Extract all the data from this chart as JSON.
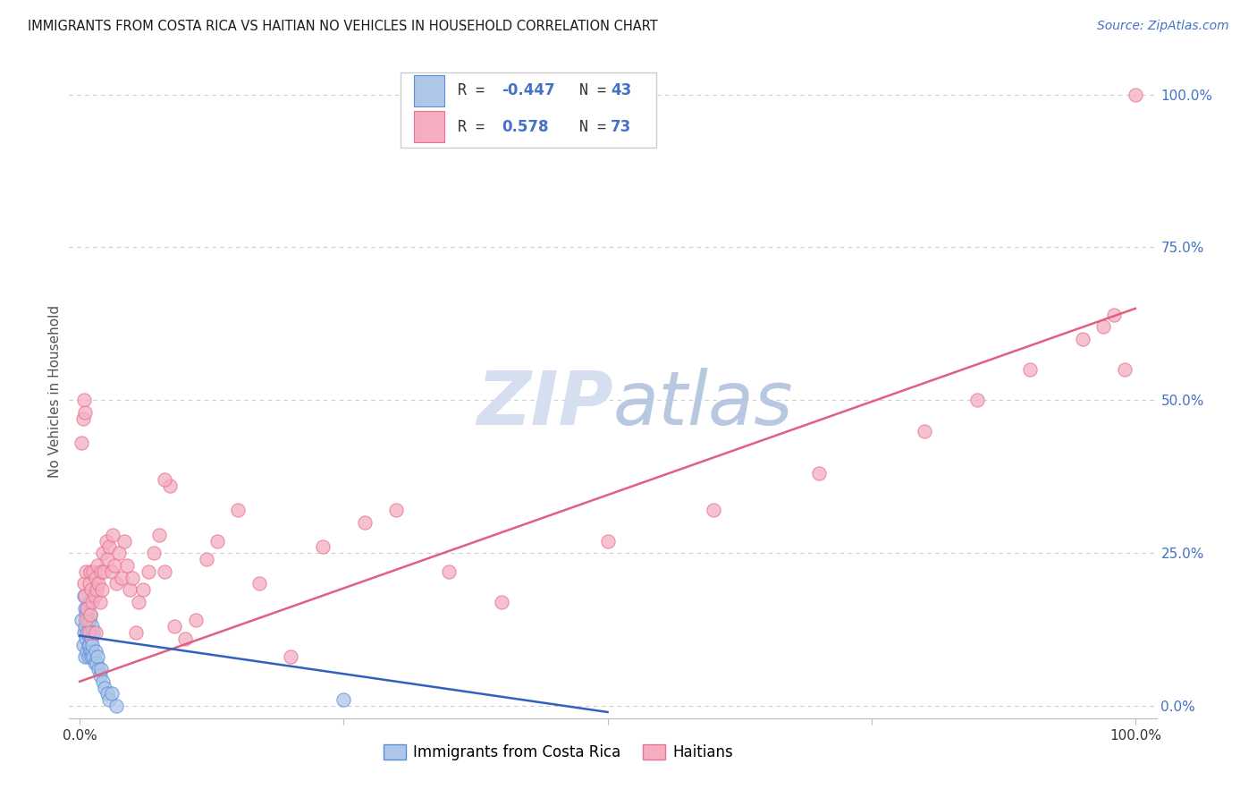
{
  "title": "IMMIGRANTS FROM COSTA RICA VS HAITIAN NO VEHICLES IN HOUSEHOLD CORRELATION CHART",
  "source": "Source: ZipAtlas.com",
  "ylabel": "No Vehicles in Household",
  "ytick_labels": [
    "0.0%",
    "25.0%",
    "50.0%",
    "75.0%",
    "100.0%"
  ],
  "ytick_values": [
    0.0,
    0.25,
    0.5,
    0.75,
    1.0
  ],
  "xtick_labels": [
    "0.0%",
    "100.0%"
  ],
  "xtick_positions": [
    0.0,
    1.0
  ],
  "xlim": [
    -0.01,
    1.02
  ],
  "ylim": [
    -0.02,
    1.05
  ],
  "legend_r_costa_rica": "-0.447",
  "legend_n_costa_rica": "43",
  "legend_r_haitian": "0.578",
  "legend_n_haitian": "73",
  "color_costa_rica_fill": "#aec6e8",
  "color_costa_rica_edge": "#5b8dd9",
  "color_haitian_fill": "#f5aec0",
  "color_haitian_edge": "#e87090",
  "color_line_costa_rica": "#3060c0",
  "color_line_haitian": "#e06080",
  "color_title": "#1a1a1a",
  "color_source": "#4472c4",
  "color_ytick": "#4472c4",
  "color_legend_text": "#4472c4",
  "background_color": "#ffffff",
  "grid_color": "#cccccc",
  "watermark_color": "#d5dff0",
  "costa_rica_x": [
    0.002,
    0.003,
    0.004,
    0.004,
    0.005,
    0.005,
    0.005,
    0.006,
    0.006,
    0.007,
    0.007,
    0.007,
    0.008,
    0.008,
    0.008,
    0.009,
    0.009,
    0.009,
    0.009,
    0.01,
    0.01,
    0.01,
    0.011,
    0.011,
    0.012,
    0.012,
    0.012,
    0.013,
    0.013,
    0.014,
    0.015,
    0.016,
    0.017,
    0.018,
    0.019,
    0.02,
    0.022,
    0.024,
    0.026,
    0.028,
    0.03,
    0.035,
    0.25
  ],
  "costa_rica_y": [
    0.14,
    0.1,
    0.18,
    0.12,
    0.16,
    0.08,
    0.13,
    0.11,
    0.15,
    0.09,
    0.12,
    0.16,
    0.1,
    0.14,
    0.08,
    0.12,
    0.1,
    0.14,
    0.17,
    0.09,
    0.12,
    0.15,
    0.08,
    0.11,
    0.09,
    0.13,
    0.1,
    0.08,
    0.12,
    0.07,
    0.09,
    0.07,
    0.08,
    0.06,
    0.05,
    0.06,
    0.04,
    0.03,
    0.02,
    0.01,
    0.02,
    0.0,
    0.01
  ],
  "haitian_x": [
    0.002,
    0.003,
    0.004,
    0.005,
    0.006,
    0.006,
    0.007,
    0.008,
    0.009,
    0.01,
    0.01,
    0.011,
    0.012,
    0.013,
    0.014,
    0.015,
    0.015,
    0.016,
    0.017,
    0.018,
    0.019,
    0.02,
    0.021,
    0.022,
    0.023,
    0.025,
    0.026,
    0.028,
    0.03,
    0.031,
    0.033,
    0.035,
    0.037,
    0.04,
    0.042,
    0.045,
    0.047,
    0.05,
    0.053,
    0.056,
    0.06,
    0.065,
    0.07,
    0.075,
    0.08,
    0.085,
    0.09,
    0.1,
    0.11,
    0.12,
    0.13,
    0.15,
    0.17,
    0.2,
    0.23,
    0.27,
    0.3,
    0.35,
    0.4,
    0.5,
    0.6,
    0.7,
    0.8,
    0.85,
    0.9,
    0.95,
    0.97,
    0.98,
    0.99,
    1.0,
    0.004,
    0.005,
    0.08
  ],
  "haitian_y": [
    0.43,
    0.47,
    0.2,
    0.18,
    0.14,
    0.22,
    0.16,
    0.12,
    0.2,
    0.15,
    0.22,
    0.19,
    0.17,
    0.22,
    0.18,
    0.12,
    0.21,
    0.19,
    0.23,
    0.2,
    0.17,
    0.22,
    0.19,
    0.25,
    0.22,
    0.27,
    0.24,
    0.26,
    0.22,
    0.28,
    0.23,
    0.2,
    0.25,
    0.21,
    0.27,
    0.23,
    0.19,
    0.21,
    0.12,
    0.17,
    0.19,
    0.22,
    0.25,
    0.28,
    0.22,
    0.36,
    0.13,
    0.11,
    0.14,
    0.24,
    0.27,
    0.32,
    0.2,
    0.08,
    0.26,
    0.3,
    0.32,
    0.22,
    0.17,
    0.27,
    0.32,
    0.38,
    0.45,
    0.5,
    0.55,
    0.6,
    0.62,
    0.64,
    0.55,
    1.0,
    0.5,
    0.48,
    0.37
  ],
  "haitian_line_x0": 0.0,
  "haitian_line_y0": 0.04,
  "haitian_line_x1": 1.0,
  "haitian_line_y1": 0.65,
  "cr_line_x0": 0.0,
  "cr_line_y0": 0.115,
  "cr_line_x1": 0.5,
  "cr_line_y1": -0.01
}
